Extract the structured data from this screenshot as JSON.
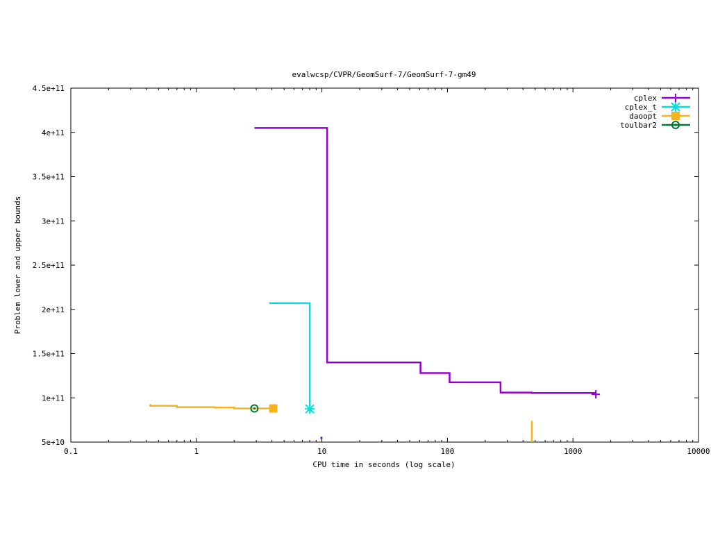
{
  "chart_data": {
    "type": "line",
    "title": "evalwcsp/CVPR/GeomSurf-7/GeomSurf-7-gm49",
    "xlabel": "CPU time in seconds (log scale)",
    "ylabel": "Problem lower and upper bounds",
    "xscale": "log",
    "xlim": [
      0.1,
      10000
    ],
    "ylim": [
      50000000000,
      450000000000
    ],
    "xticks": [
      {
        "value": 0.1,
        "label": "0.1"
      },
      {
        "value": 1,
        "label": "1"
      },
      {
        "value": 10,
        "label": "10"
      },
      {
        "value": 100,
        "label": "100"
      },
      {
        "value": 1000,
        "label": "1000"
      },
      {
        "value": 10000,
        "label": "10000"
      }
    ],
    "yticks": [
      {
        "value": 50000000000,
        "label": "5e+10"
      },
      {
        "value": 100000000000,
        "label": "1e+11"
      },
      {
        "value": 150000000000,
        "label": "1.5e+11"
      },
      {
        "value": 200000000000,
        "label": "2e+11"
      },
      {
        "value": 250000000000,
        "label": "2.5e+11"
      },
      {
        "value": 300000000000,
        "label": "3e+11"
      },
      {
        "value": 350000000000,
        "label": "3.5e+11"
      },
      {
        "value": 400000000000,
        "label": "4e+11"
      },
      {
        "value": 450000000000,
        "label": "4.5e+11"
      }
    ],
    "grid": false,
    "legend_position": "top-right",
    "series": [
      {
        "name": "cplex",
        "color": "#9400d3",
        "marker": "plus",
        "step": true,
        "points": [
          [
            2.9,
            405000000000
          ],
          [
            11,
            405000000000
          ],
          [
            11,
            140000000000
          ],
          [
            61,
            140000000000
          ],
          [
            61,
            128000000000
          ],
          [
            104,
            128000000000
          ],
          [
            104,
            117500000000
          ],
          [
            265,
            117500000000
          ],
          [
            265,
            106000000000
          ],
          [
            470,
            106000000000
          ],
          [
            470,
            105500000000
          ],
          [
            1480,
            105500000000
          ],
          [
            1480,
            104000000000
          ]
        ],
        "segments": [
          [
            [
              9.9,
              53500000000
            ],
            [
              9.9,
              55000000000
            ],
            [
              10.1,
              55000000000
            ]
          ]
        ],
        "markers": [
          [
            1520,
            104000000000
          ]
        ]
      },
      {
        "name": "cplex_t",
        "color": "#00e0e0",
        "marker": "star",
        "step": true,
        "points": [
          [
            3.8,
            207000000000
          ],
          [
            8,
            207000000000
          ],
          [
            8,
            87500000000
          ]
        ],
        "markers": [
          [
            8,
            87500000000
          ]
        ]
      },
      {
        "name": "daoopt",
        "color": "#f5b41e",
        "marker": "square",
        "step": true,
        "points": [
          [
            0.43,
            93000000000
          ],
          [
            0.43,
            91000000000
          ],
          [
            0.7,
            91000000000
          ],
          [
            0.7,
            89500000000
          ],
          [
            1.4,
            89500000000
          ],
          [
            1.4,
            89000000000
          ],
          [
            2.0,
            89000000000
          ],
          [
            2.0,
            88000000000
          ],
          [
            4.1,
            88000000000
          ]
        ],
        "segments": [
          [
            [
              470,
              74000000000
            ],
            [
              470,
              50000000000
            ]
          ]
        ],
        "markers": [
          [
            4.1,
            88000000000
          ]
        ]
      },
      {
        "name": "toulbar2",
        "color": "#007a33",
        "marker": "circle",
        "step": true,
        "points": [
          [
            2.9,
            88000000000
          ]
        ],
        "markers": [
          [
            2.9,
            88000000000
          ]
        ]
      }
    ]
  }
}
